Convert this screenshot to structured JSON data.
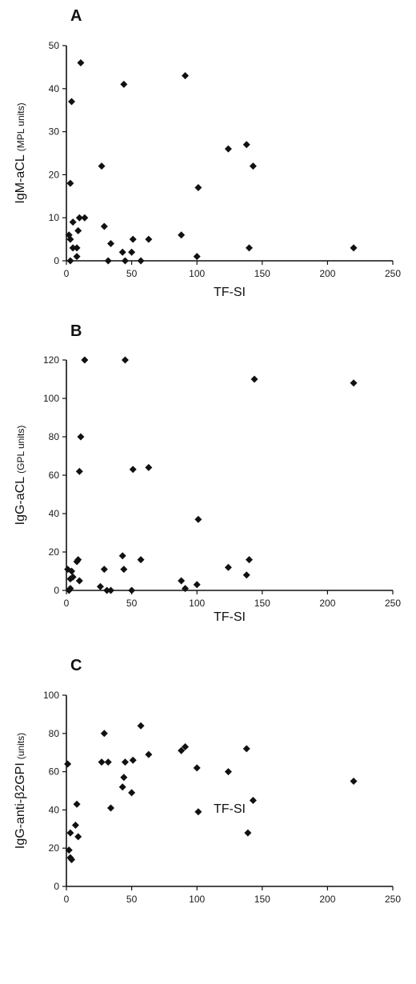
{
  "chart_data": [
    {
      "type": "scatter",
      "panel_label": "A",
      "ylabel_main": "IgM-aCL",
      "ylabel_sub": "(MPL units)",
      "xlabel": "TF-SI",
      "xlim": [
        0,
        250
      ],
      "ylim": [
        0,
        50
      ],
      "xticks": [
        0,
        50,
        100,
        150,
        200,
        250
      ],
      "yticks": [
        0,
        10,
        20,
        30,
        40,
        50
      ],
      "grid": false,
      "marker": "diamond",
      "points": [
        {
          "x": 2,
          "y": 6
        },
        {
          "x": 3,
          "y": 5
        },
        {
          "x": 3,
          "y": 18
        },
        {
          "x": 3,
          "y": 0
        },
        {
          "x": 4,
          "y": 37
        },
        {
          "x": 5,
          "y": 9
        },
        {
          "x": 5,
          "y": 3
        },
        {
          "x": 8,
          "y": 1
        },
        {
          "x": 8,
          "y": 3
        },
        {
          "x": 9,
          "y": 7
        },
        {
          "x": 10,
          "y": 10
        },
        {
          "x": 11,
          "y": 46
        },
        {
          "x": 14,
          "y": 10
        },
        {
          "x": 27,
          "y": 22
        },
        {
          "x": 29,
          "y": 8
        },
        {
          "x": 32,
          "y": 0
        },
        {
          "x": 34,
          "y": 4
        },
        {
          "x": 43,
          "y": 2
        },
        {
          "x": 44,
          "y": 41
        },
        {
          "x": 45,
          "y": 0
        },
        {
          "x": 50,
          "y": 2
        },
        {
          "x": 51,
          "y": 5
        },
        {
          "x": 57,
          "y": 0
        },
        {
          "x": 63,
          "y": 5
        },
        {
          "x": 88,
          "y": 6
        },
        {
          "x": 91,
          "y": 43
        },
        {
          "x": 100,
          "y": 1
        },
        {
          "x": 101,
          "y": 17
        },
        {
          "x": 124,
          "y": 26
        },
        {
          "x": 138,
          "y": 27
        },
        {
          "x": 140,
          "y": 3
        },
        {
          "x": 143,
          "y": 22
        },
        {
          "x": 220,
          "y": 3
        }
      ]
    },
    {
      "type": "scatter",
      "panel_label": "B",
      "ylabel_main": "IgG-aCL",
      "ylabel_sub": "(GPL units)",
      "xlabel": "TF-SI",
      "xlim": [
        0,
        250
      ],
      "ylim": [
        0,
        120
      ],
      "xticks": [
        0,
        50,
        100,
        150,
        200,
        250
      ],
      "yticks": [
        0,
        20,
        40,
        60,
        80,
        100,
        120
      ],
      "grid": false,
      "marker": "diamond",
      "points": [
        {
          "x": 1,
          "y": 11
        },
        {
          "x": 2,
          "y": 0
        },
        {
          "x": 3,
          "y": 1
        },
        {
          "x": 3,
          "y": 6
        },
        {
          "x": 4,
          "y": 10
        },
        {
          "x": 5,
          "y": 7
        },
        {
          "x": 8,
          "y": 15
        },
        {
          "x": 9,
          "y": 16
        },
        {
          "x": 10,
          "y": 5
        },
        {
          "x": 10,
          "y": 62
        },
        {
          "x": 11,
          "y": 80
        },
        {
          "x": 14,
          "y": 120
        },
        {
          "x": 26,
          "y": 2
        },
        {
          "x": 29,
          "y": 11
        },
        {
          "x": 31,
          "y": 0
        },
        {
          "x": 34,
          "y": 0
        },
        {
          "x": 43,
          "y": 18
        },
        {
          "x": 44,
          "y": 11
        },
        {
          "x": 45,
          "y": 120
        },
        {
          "x": 50,
          "y": 0
        },
        {
          "x": 51,
          "y": 63
        },
        {
          "x": 57,
          "y": 16
        },
        {
          "x": 63,
          "y": 64
        },
        {
          "x": 88,
          "y": 5
        },
        {
          "x": 91,
          "y": 1
        },
        {
          "x": 100,
          "y": 3
        },
        {
          "x": 101,
          "y": 37
        },
        {
          "x": 124,
          "y": 12
        },
        {
          "x": 138,
          "y": 8
        },
        {
          "x": 140,
          "y": 16
        },
        {
          "x": 144,
          "y": 110
        },
        {
          "x": 220,
          "y": 108
        }
      ]
    },
    {
      "type": "scatter",
      "panel_label": "C",
      "ylabel_main": "IgG-anti-β2GPI",
      "ylabel_sub": "(units)",
      "xlabel": "TF-SI",
      "xlim": [
        0,
        250
      ],
      "ylim": [
        0,
        100
      ],
      "xticks": [
        0,
        50,
        100,
        150,
        200,
        250
      ],
      "yticks": [
        0,
        20,
        40,
        60,
        80,
        100
      ],
      "grid": false,
      "marker": "diamond",
      "points": [
        {
          "x": 1,
          "y": 64
        },
        {
          "x": 2,
          "y": 19
        },
        {
          "x": 3,
          "y": 15
        },
        {
          "x": 3,
          "y": 28
        },
        {
          "x": 4,
          "y": 14
        },
        {
          "x": 7,
          "y": 32
        },
        {
          "x": 8,
          "y": 43
        },
        {
          "x": 9,
          "y": 26
        },
        {
          "x": 27,
          "y": 65
        },
        {
          "x": 29,
          "y": 80
        },
        {
          "x": 32,
          "y": 65
        },
        {
          "x": 34,
          "y": 41
        },
        {
          "x": 43,
          "y": 52
        },
        {
          "x": 44,
          "y": 57
        },
        {
          "x": 45,
          "y": 65
        },
        {
          "x": 50,
          "y": 49
        },
        {
          "x": 51,
          "y": 66
        },
        {
          "x": 57,
          "y": 84
        },
        {
          "x": 63,
          "y": 69
        },
        {
          "x": 88,
          "y": 71
        },
        {
          "x": 91,
          "y": 73
        },
        {
          "x": 100,
          "y": 62
        },
        {
          "x": 101,
          "y": 39
        },
        {
          "x": 124,
          "y": 60
        },
        {
          "x": 138,
          "y": 72
        },
        {
          "x": 139,
          "y": 28
        },
        {
          "x": 143,
          "y": 45
        },
        {
          "x": 220,
          "y": 55
        }
      ]
    }
  ]
}
